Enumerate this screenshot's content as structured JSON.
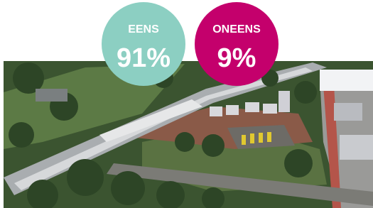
{
  "poll": {
    "options": [
      {
        "label": "EENS",
        "result": "91%",
        "color": "#8ccfc2"
      },
      {
        "label": "ONEENS",
        "result": "9%",
        "color": "#c4006c"
      }
    ]
  }
}
